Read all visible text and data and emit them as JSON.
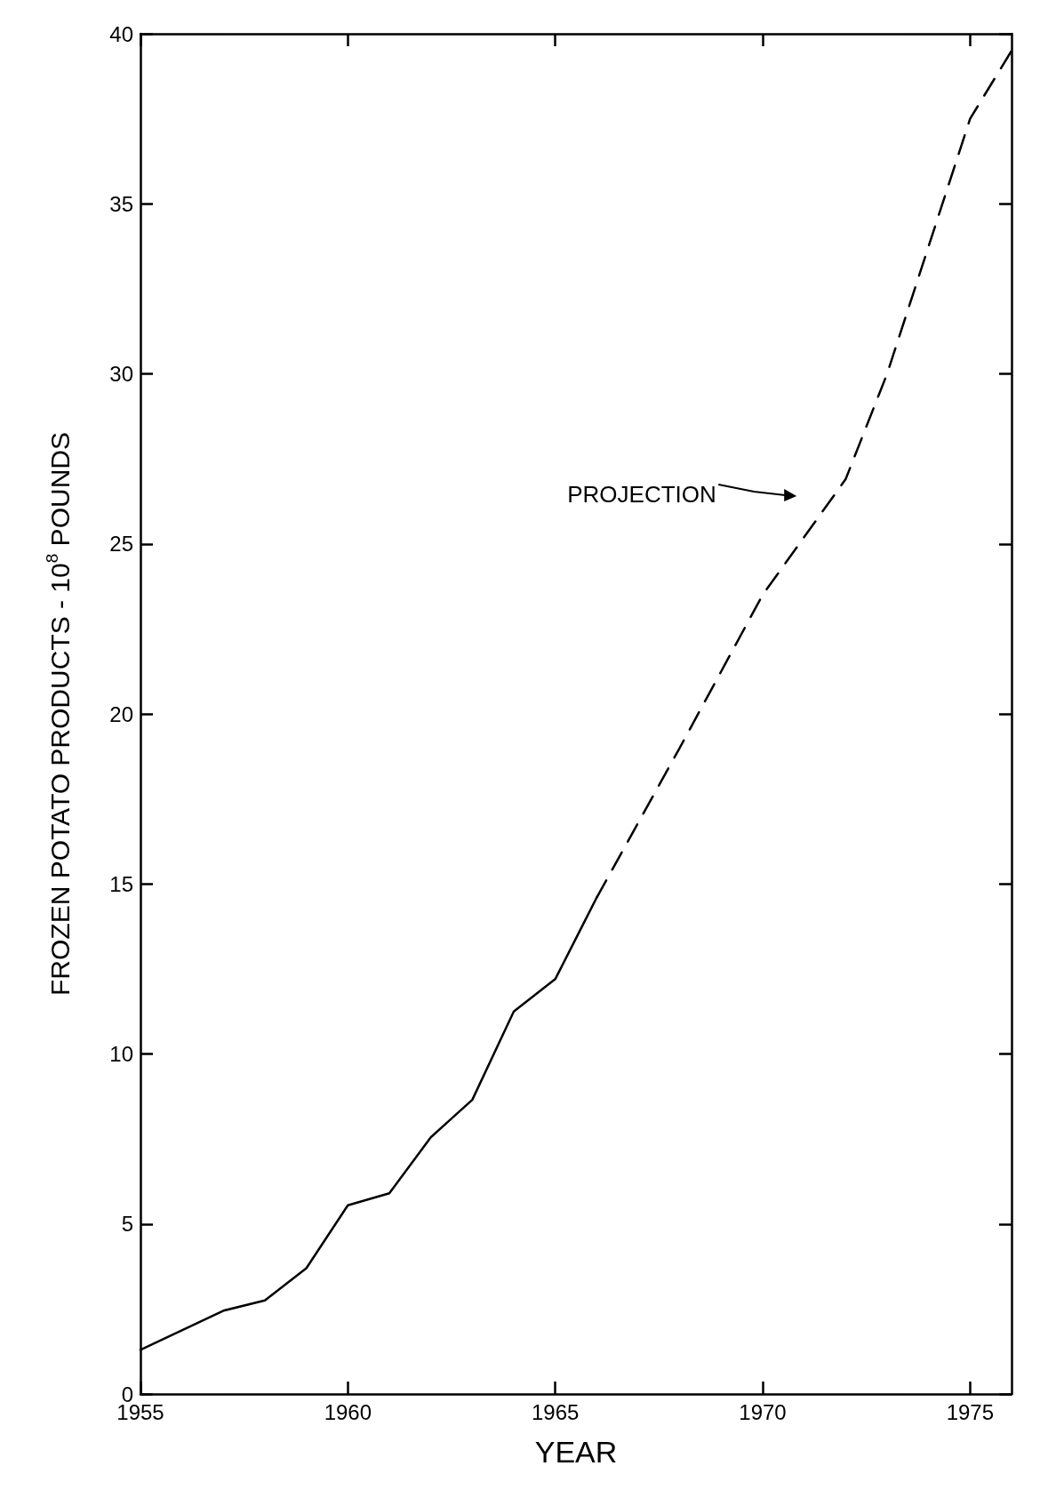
{
  "chart_data": {
    "type": "line",
    "xlabel": "YEAR",
    "ylabel": "FROZEN POTATO PRODUCTS - 10$^{8}$ POUNDS",
    "series": [
      {
        "color": "#000000",
        "line_style": "solid",
        "x": [
          1955,
          1957,
          1958,
          1959,
          1960,
          1961,
          1962,
          1963,
          1964,
          1965,
          1966
        ],
        "values": [
          1.3,
          2.45,
          2.75,
          3.7,
          5.55,
          5.9,
          7.55,
          8.65,
          11.25,
          12.2,
          14.6
        ]
      },
      {
        "color": "#000000",
        "line_style": "dashed",
        "x": [
          1966,
          1968,
          1970,
          1972,
          1973,
          1975,
          1976
        ],
        "values": [
          14.6,
          19,
          23.5,
          26.9,
          30,
          37.5,
          39.5
        ]
      }
    ],
    "xlim": [
      1955,
      1976
    ],
    "xticks": [
      1955,
      1960,
      1965,
      1970,
      1975
    ],
    "ylim": [
      0,
      40
    ],
    "yticks": [
      0,
      5,
      10,
      15,
      20,
      25,
      30,
      35,
      40
    ],
    "grid": false,
    "marker": "none",
    "annotations": [
      "PROJECTION"
    ]
  }
}
